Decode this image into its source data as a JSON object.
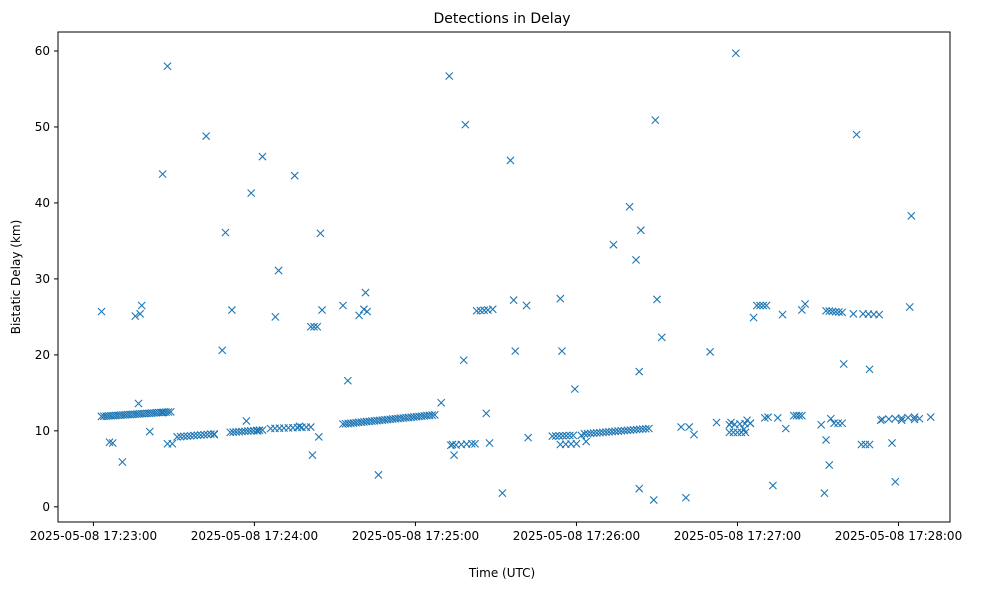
{
  "chart_data": {
    "type": "scatter",
    "title": "Detections in Delay",
    "xlabel": "Time (UTC)",
    "ylabel": "Bistatic Delay (km)",
    "x_unit": "minutes after 2025-05-08 17:23:00 UTC",
    "xlim": [
      -0.22,
      5.32
    ],
    "ylim": [
      -2,
      62.5
    ],
    "x_ticks": [
      {
        "value": 0,
        "label": "2025-05-08 17:23:00"
      },
      {
        "value": 1,
        "label": "2025-05-08 17:24:00"
      },
      {
        "value": 2,
        "label": "2025-05-08 17:25:00"
      },
      {
        "value": 3,
        "label": "2025-05-08 17:26:00"
      },
      {
        "value": 4,
        "label": "2025-05-08 17:27:00"
      },
      {
        "value": 5,
        "label": "2025-05-08 17:28:00"
      }
    ],
    "y_ticks": [
      {
        "value": 0,
        "label": "0"
      },
      {
        "value": 10,
        "label": "10"
      },
      {
        "value": 20,
        "label": "20"
      },
      {
        "value": 30,
        "label": "30"
      },
      {
        "value": 40,
        "label": "40"
      },
      {
        "value": 50,
        "label": "50"
      },
      {
        "value": 60,
        "label": "60"
      }
    ],
    "grid": false,
    "legend": "none",
    "marker": "x",
    "color": "#1f77b4",
    "series": [
      {
        "tracks": [
          {
            "x0": 0.05,
            "x1": 0.48,
            "y0": 11.9,
            "y1": 12.5,
            "n": 30
          },
          {
            "x0": 0.52,
            "x1": 0.75,
            "y0": 9.2,
            "y1": 9.6,
            "n": 12
          },
          {
            "x0": 0.85,
            "x1": 1.05,
            "y0": 9.8,
            "y1": 10.1,
            "n": 12
          },
          {
            "x0": 1.1,
            "x1": 1.35,
            "y0": 10.3,
            "y1": 10.5,
            "n": 10
          },
          {
            "x0": 1.55,
            "x1": 2.12,
            "y0": 10.9,
            "y1": 12.1,
            "n": 36
          },
          {
            "x0": 2.22,
            "x1": 2.35,
            "y0": 8.1,
            "y1": 8.3,
            "n": 5
          },
          {
            "x0": 2.38,
            "x1": 2.45,
            "y0": 25.8,
            "y1": 25.9,
            "n": 4
          },
          {
            "x0": 2.85,
            "x1": 2.98,
            "y0": 9.3,
            "y1": 9.4,
            "n": 7
          },
          {
            "x0": 2.9,
            "x1": 3.0,
            "y0": 8.2,
            "y1": 8.3,
            "n": 4
          },
          {
            "x0": 3.05,
            "x1": 3.45,
            "y0": 9.6,
            "y1": 10.3,
            "n": 22
          },
          {
            "x0": 3.95,
            "x1": 4.05,
            "y0": 9.8,
            "y1": 9.8,
            "n": 5
          },
          {
            "x0": 3.95,
            "x1": 4.08,
            "y0": 10.8,
            "y1": 11.0,
            "n": 5
          },
          {
            "x0": 4.12,
            "x1": 4.18,
            "y0": 26.5,
            "y1": 26.5,
            "n": 4
          },
          {
            "x0": 4.35,
            "x1": 4.4,
            "y0": 12.0,
            "y1": 12.0,
            "n": 4
          },
          {
            "x0": 4.55,
            "x1": 4.65,
            "y0": 25.8,
            "y1": 25.6,
            "n": 6
          },
          {
            "x0": 4.6,
            "x1": 4.65,
            "y0": 11.0,
            "y1": 11.0,
            "n": 3
          },
          {
            "x0": 4.78,
            "x1": 4.88,
            "y0": 25.4,
            "y1": 25.3,
            "n": 4
          },
          {
            "x0": 4.77,
            "x1": 4.82,
            "y0": 8.2,
            "y1": 8.2,
            "n": 3
          },
          {
            "x0": 4.9,
            "x1": 5.1,
            "y0": 11.5,
            "y1": 11.8,
            "n": 6
          }
        ],
        "points": [
          [
            0.05,
            25.7
          ],
          [
            0.1,
            8.5
          ],
          [
            0.12,
            8.4
          ],
          [
            0.18,
            5.9
          ],
          [
            0.26,
            25.1
          ],
          [
            0.28,
            13.6
          ],
          [
            0.29,
            25.4
          ],
          [
            0.3,
            26.5
          ],
          [
            0.35,
            9.9
          ],
          [
            0.43,
            43.8
          ],
          [
            0.46,
            58.0
          ],
          [
            0.46,
            8.3
          ],
          [
            0.49,
            8.3
          ],
          [
            0.7,
            48.8
          ],
          [
            0.75,
            9.5
          ],
          [
            0.8,
            20.6
          ],
          [
            0.82,
            36.1
          ],
          [
            0.86,
            25.9
          ],
          [
            0.95,
            11.3
          ],
          [
            0.98,
            41.3
          ],
          [
            1.02,
            10.0
          ],
          [
            1.05,
            46.1
          ],
          [
            1.13,
            25.0
          ],
          [
            1.15,
            31.1
          ],
          [
            1.25,
            43.6
          ],
          [
            1.28,
            10.6
          ],
          [
            1.35,
            23.7
          ],
          [
            1.36,
            6.8
          ],
          [
            1.37,
            23.7
          ],
          [
            1.39,
            23.7
          ],
          [
            1.4,
            9.2
          ],
          [
            1.41,
            36.0
          ],
          [
            1.42,
            25.9
          ],
          [
            1.55,
            26.5
          ],
          [
            1.58,
            16.6
          ],
          [
            1.65,
            25.2
          ],
          [
            1.68,
            26.0
          ],
          [
            1.69,
            28.2
          ],
          [
            1.7,
            25.7
          ],
          [
            1.77,
            4.2
          ],
          [
            2.16,
            13.7
          ],
          [
            2.21,
            56.7
          ],
          [
            2.24,
            6.8
          ],
          [
            2.3,
            19.3
          ],
          [
            2.31,
            50.3
          ],
          [
            2.37,
            8.3
          ],
          [
            2.44,
            12.3
          ],
          [
            2.46,
            8.4
          ],
          [
            2.48,
            26.0
          ],
          [
            2.54,
            1.8
          ],
          [
            2.59,
            45.6
          ],
          [
            2.61,
            27.2
          ],
          [
            2.62,
            20.5
          ],
          [
            2.69,
            26.5
          ],
          [
            2.7,
            9.1
          ],
          [
            2.9,
            27.4
          ],
          [
            2.91,
            20.5
          ],
          [
            2.99,
            15.5
          ],
          [
            3.03,
            9.4
          ],
          [
            3.06,
            8.6
          ],
          [
            3.23,
            34.5
          ],
          [
            3.33,
            39.5
          ],
          [
            3.37,
            32.5
          ],
          [
            3.39,
            17.8
          ],
          [
            3.39,
            2.4
          ],
          [
            3.4,
            36.4
          ],
          [
            3.48,
            0.9
          ],
          [
            3.49,
            50.9
          ],
          [
            3.5,
            27.3
          ],
          [
            3.53,
            22.3
          ],
          [
            3.65,
            10.5
          ],
          [
            3.68,
            1.2
          ],
          [
            3.7,
            10.5
          ],
          [
            3.73,
            9.5
          ],
          [
            3.83,
            20.4
          ],
          [
            3.87,
            11.1
          ],
          [
            3.96,
            11.1
          ],
          [
            3.99,
            59.7
          ],
          [
            4.04,
            10.2
          ],
          [
            4.06,
            11.4
          ],
          [
            4.08,
            11.0
          ],
          [
            4.1,
            24.9
          ],
          [
            4.17,
            11.7
          ],
          [
            4.19,
            11.8
          ],
          [
            4.22,
            2.8
          ],
          [
            4.25,
            11.7
          ],
          [
            4.28,
            25.3
          ],
          [
            4.3,
            10.3
          ],
          [
            4.4,
            25.9
          ],
          [
            4.42,
            26.7
          ],
          [
            4.52,
            10.8
          ],
          [
            4.55,
            8.8
          ],
          [
            4.57,
            5.5
          ],
          [
            4.58,
            11.6
          ],
          [
            4.66,
            18.8
          ],
          [
            4.72,
            25.4
          ],
          [
            4.74,
            49.0
          ],
          [
            4.82,
            18.1
          ],
          [
            4.89,
            11.4
          ],
          [
            4.96,
            8.4
          ],
          [
            4.98,
            3.3
          ],
          [
            5.02,
            11.4
          ],
          [
            5.07,
            26.3
          ],
          [
            5.08,
            38.3
          ],
          [
            5.1,
            11.5
          ],
          [
            5.13,
            11.6
          ],
          [
            5.2,
            11.8
          ],
          [
            4.54,
            1.8
          ],
          [
            2.23,
            8.2
          ],
          [
            0.43,
            12.4
          ]
        ]
      }
    ]
  }
}
